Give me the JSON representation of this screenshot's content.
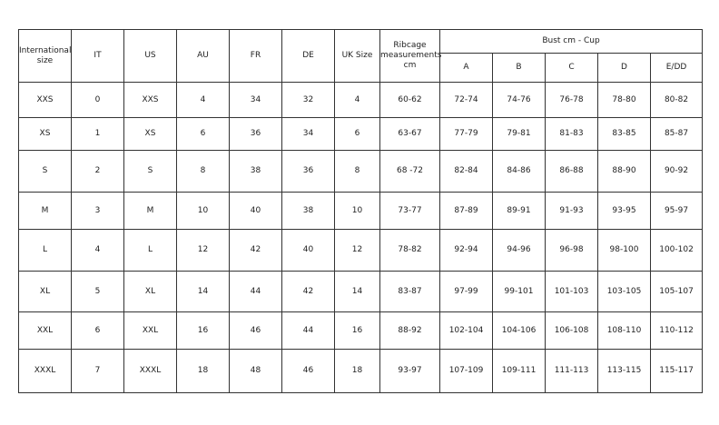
{
  "headers": {
    "international": "International size",
    "it": "IT",
    "us": "US",
    "au": "AU",
    "fr": "FR",
    "de": "DE",
    "uk": "UK Size",
    "ribcage": "Ribcage measurements cm",
    "bust": "Bust cm - Cup",
    "cups": [
      "A",
      "B",
      "C",
      "D",
      "E/DD"
    ]
  },
  "rows": [
    [
      "XXS",
      "0",
      "XXS",
      "4",
      "34",
      "32",
      "4",
      "60-62",
      "72-74",
      "74-76",
      "76-78",
      "78-80",
      "80-82"
    ],
    [
      "XS",
      "1",
      "XS",
      "6",
      "36",
      "34",
      "6",
      "63-67",
      "77-79",
      "79-81",
      "81-83",
      "83-85",
      "85-87"
    ],
    [
      "S",
      "2",
      "S",
      "8",
      "38",
      "36",
      "8",
      "68 -72",
      "82-84",
      "84-86",
      "86-88",
      "88-90",
      "90-92"
    ],
    [
      "M",
      "3",
      "M",
      "10",
      "40",
      "38",
      "10",
      "73-77",
      "87-89",
      "89-91",
      "91-93",
      "93-95",
      "95-97"
    ],
    [
      "L",
      "4",
      "L",
      "12",
      "42",
      "40",
      "12",
      "78-82",
      "92-94",
      "94-96",
      "96-98",
      "98-100",
      "100-102"
    ],
    [
      "XL",
      "5",
      "XL",
      "14",
      "44",
      "42",
      "14",
      "83-87",
      "97-99",
      "99-101",
      "101-103",
      "103-105",
      "105-107"
    ],
    [
      "XXL",
      "6",
      "XXL",
      "16",
      "46",
      "44",
      "16",
      "88-92",
      "102-104",
      "104-106",
      "106-108",
      "108-110",
      "110-112"
    ],
    [
      "XXXL",
      "7",
      "XXXL",
      "18",
      "48",
      "46",
      "18",
      "93-97",
      "107-109",
      "109-111",
      "111-113",
      "113-115",
      "115-117"
    ]
  ]
}
